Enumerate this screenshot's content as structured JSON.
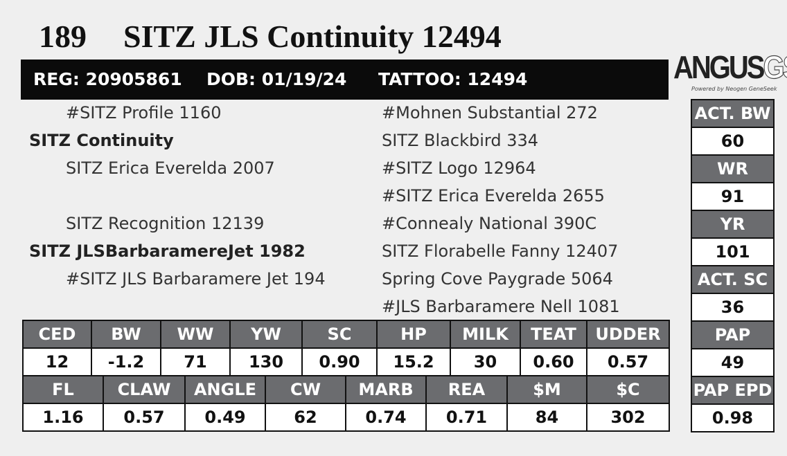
{
  "header": {
    "lot": "189",
    "name": "SITZ JLS Continuity 12494"
  },
  "info_bar": {
    "reg": "REG: 20905861",
    "dob": "DOB: 01/19/24",
    "tattoo": "TATTOO: 12494"
  },
  "logo": {
    "main": "ANGUS",
    "suffix": "GS",
    "tagline": "Powered by Neogen GeneSeek"
  },
  "pedigree": {
    "left": [
      "#SITZ Profile 1160",
      "SITZ Continuity",
      "SITZ Erica Everelda 2007",
      "SITZ Recognition 12139",
      "SITZ JLSBarbaramereJet 1982",
      "#SITZ JLS Barbaramere Jet 194"
    ],
    "right": [
      "#Mohnen Substantial 272",
      "SITZ Blackbird 334",
      "#SITZ Logo 12964",
      "#SITZ Erica Everelda 2655",
      "#Connealy National 390C",
      "SITZ Florabelle Fanny 12407",
      "Spring Cove Paygrade 5064",
      "#JLS Barbaramere Nell 1081"
    ]
  },
  "side_stats": [
    {
      "label": "ACT. BW",
      "value": "60"
    },
    {
      "label": "WR",
      "value": "91"
    },
    {
      "label": "YR",
      "value": "101"
    },
    {
      "label": "ACT. SC",
      "value": "36"
    },
    {
      "label": "PAP",
      "value": "49"
    },
    {
      "label": "PAP EPD",
      "value": "0.98"
    }
  ],
  "epd_tables": [
    {
      "columns": [
        "CED",
        "BW",
        "WW",
        "YW",
        "SC",
        "HP",
        "MILK",
        "TEAT",
        "UDDER"
      ],
      "values": [
        "12",
        "-1.2",
        "71",
        "130",
        "0.90",
        "15.2",
        "30",
        "0.60",
        "0.57"
      ]
    },
    {
      "columns": [
        "FL",
        "CLAW",
        "ANGLE",
        "CW",
        "MARB",
        "REA",
        "$M",
        "$C"
      ],
      "values": [
        "1.16",
        "0.57",
        "0.49",
        "62",
        "0.74",
        "0.71",
        "84",
        "302"
      ]
    }
  ]
}
